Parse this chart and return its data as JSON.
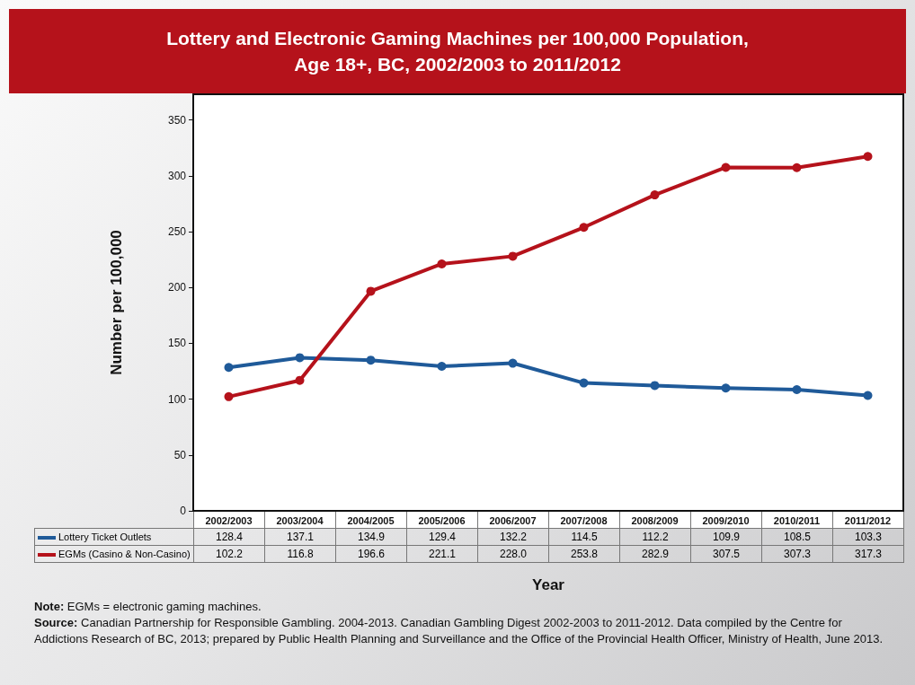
{
  "chart_data": {
    "type": "line",
    "title": "Lottery and Electronic Gaming Machines per 100,000 Population,\nAge 18+, BC, 2002/2003 to 2011/2012",
    "xlabel": "Year",
    "ylabel": "Number per 100,000",
    "categories": [
      "2002/2003",
      "2003/2004",
      "2004/2005",
      "2005/2006",
      "2006/2007",
      "2007/2008",
      "2008/2009",
      "2009/2010",
      "2010/2011",
      "2011/2012"
    ],
    "series": [
      {
        "name": "Lottery Ticket Outlets",
        "color": "#1f5a99",
        "values": [
          128.4,
          137.1,
          134.9,
          129.4,
          132.2,
          114.5,
          112.2,
          109.9,
          108.5,
          103.3
        ],
        "value_labels": [
          "128.4",
          "137.1",
          "134.9",
          "129.4",
          "132.2",
          "114.5",
          "112.2",
          "109.9",
          "108.5",
          "103.3"
        ]
      },
      {
        "name": "EGMs (Casino & Non-Casino)",
        "color": "#b5121b",
        "values": [
          102.2,
          116.8,
          196.6,
          221.1,
          228.0,
          253.8,
          282.9,
          307.5,
          307.3,
          317.3
        ],
        "value_labels": [
          "102.2",
          "116.8",
          "196.6",
          "221.1",
          "228.0",
          "253.8",
          "282.9",
          "307.5",
          "307.3",
          "317.3"
        ]
      }
    ],
    "ylim": [
      0,
      373
    ],
    "yticks": [
      0,
      50,
      100,
      150,
      200,
      250,
      300,
      350
    ],
    "grid": false,
    "legend": "bottom",
    "marker": "circle",
    "line_style": "solid",
    "annotations": [
      "Note: EGMs = electronic gaming machines.",
      "Source: Canadian Partnership for Responsible Gambling. 2004-2013. Canadian Gambling Digest 2002-2003 to 2011-2012. Data compiled by the Centre for Addictions Research of BC, 2013; prepared by Public Health Planning and Surveillance and the Office of the Provincial Health Officer, Ministry of Health, June 2013."
    ]
  }
}
